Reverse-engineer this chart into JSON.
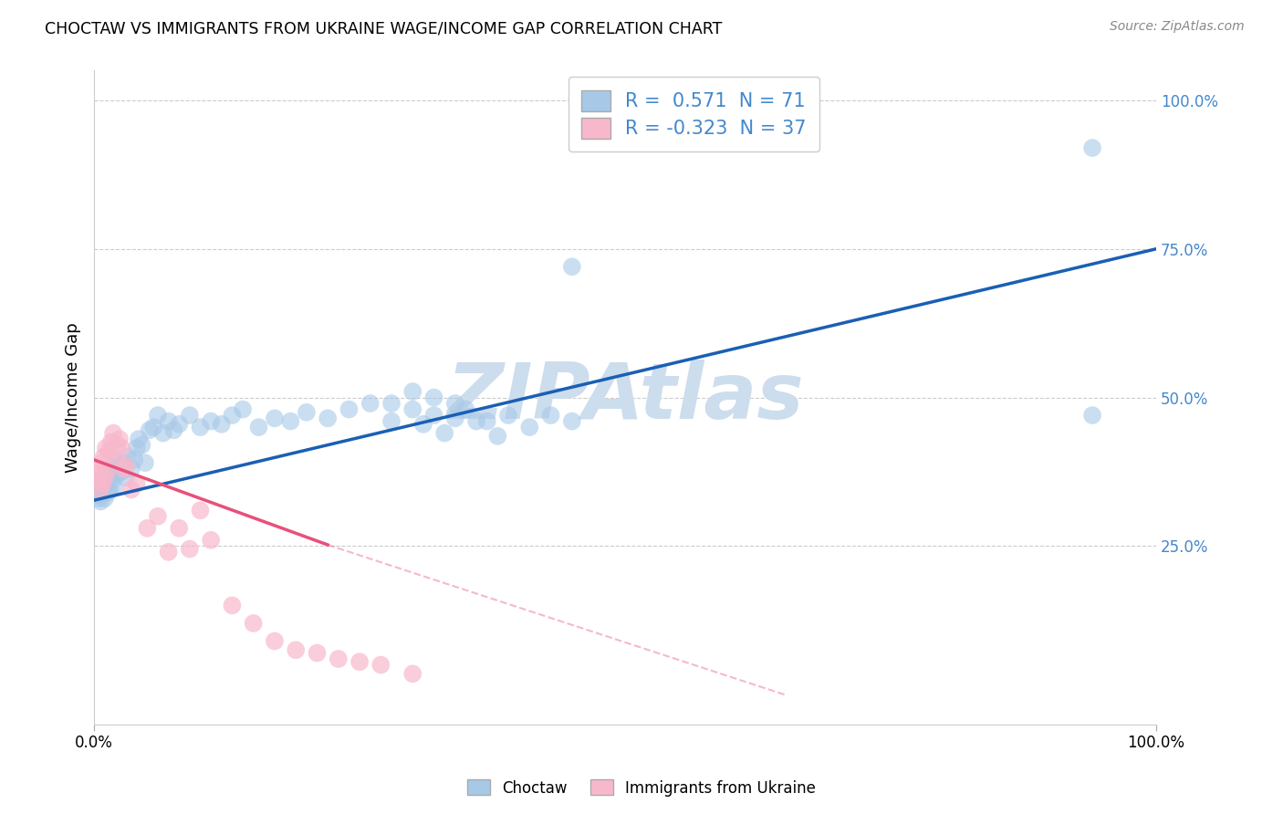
{
  "title": "CHOCTAW VS IMMIGRANTS FROM UKRAINE WAGE/INCOME GAP CORRELATION CHART",
  "source": "Source: ZipAtlas.com",
  "ylabel": "Wage/Income Gap",
  "right_ytick_vals": [
    1.0,
    0.75,
    0.5,
    0.25
  ],
  "right_ytick_labels": [
    "100.0%",
    "75.0%",
    "50.0%",
    "25.0%"
  ],
  "blue_color": "#a8c8e8",
  "pink_color": "#f8b8cc",
  "blue_line_color": "#1a5fb4",
  "pink_line_color": "#e8507a",
  "watermark": "ZIPAtlas",
  "watermark_color": "#ccdded",
  "legend_label1": "R =  0.571  N = 71",
  "legend_label2": "R = -0.323  N = 37",
  "legend_text_color": "#4488cc",
  "blue_scatter_x": [
    0.003,
    0.004,
    0.005,
    0.006,
    0.007,
    0.008,
    0.009,
    0.01,
    0.011,
    0.012,
    0.013,
    0.014,
    0.015,
    0.016,
    0.017,
    0.018,
    0.019,
    0.02,
    0.022,
    0.024,
    0.026,
    0.028,
    0.03,
    0.032,
    0.035,
    0.038,
    0.04,
    0.042,
    0.045,
    0.048,
    0.052,
    0.056,
    0.06,
    0.065,
    0.07,
    0.075,
    0.08,
    0.09,
    0.1,
    0.11,
    0.12,
    0.13,
    0.14,
    0.155,
    0.17,
    0.185,
    0.2,
    0.22,
    0.24,
    0.26,
    0.28,
    0.3,
    0.31,
    0.32,
    0.33,
    0.34,
    0.35,
    0.37,
    0.39,
    0.41,
    0.43,
    0.45,
    0.28,
    0.3,
    0.32,
    0.34,
    0.36,
    0.38,
    0.45,
    0.94,
    0.94
  ],
  "blue_scatter_y": [
    0.335,
    0.33,
    0.34,
    0.325,
    0.345,
    0.35,
    0.36,
    0.33,
    0.355,
    0.37,
    0.34,
    0.365,
    0.345,
    0.375,
    0.36,
    0.38,
    0.35,
    0.395,
    0.37,
    0.385,
    0.375,
    0.39,
    0.365,
    0.4,
    0.38,
    0.395,
    0.415,
    0.43,
    0.42,
    0.39,
    0.445,
    0.45,
    0.47,
    0.44,
    0.46,
    0.445,
    0.455,
    0.47,
    0.45,
    0.46,
    0.455,
    0.47,
    0.48,
    0.45,
    0.465,
    0.46,
    0.475,
    0.465,
    0.48,
    0.49,
    0.46,
    0.48,
    0.455,
    0.47,
    0.44,
    0.465,
    0.48,
    0.46,
    0.47,
    0.45,
    0.47,
    0.46,
    0.49,
    0.51,
    0.5,
    0.49,
    0.46,
    0.435,
    0.72,
    0.92,
    0.47
  ],
  "pink_scatter_x": [
    0.003,
    0.004,
    0.005,
    0.006,
    0.007,
    0.008,
    0.009,
    0.01,
    0.011,
    0.012,
    0.014,
    0.016,
    0.018,
    0.02,
    0.022,
    0.024,
    0.026,
    0.028,
    0.03,
    0.035,
    0.04,
    0.05,
    0.06,
    0.07,
    0.08,
    0.09,
    0.1,
    0.11,
    0.13,
    0.15,
    0.17,
    0.19,
    0.21,
    0.23,
    0.25,
    0.27,
    0.3
  ],
  "pink_scatter_y": [
    0.375,
    0.36,
    0.38,
    0.345,
    0.39,
    0.355,
    0.4,
    0.365,
    0.415,
    0.375,
    0.41,
    0.425,
    0.44,
    0.395,
    0.42,
    0.43,
    0.415,
    0.38,
    0.385,
    0.345,
    0.355,
    0.28,
    0.3,
    0.24,
    0.28,
    0.245,
    0.31,
    0.26,
    0.15,
    0.12,
    0.09,
    0.075,
    0.07,
    0.06,
    0.055,
    0.05,
    0.035
  ],
  "blue_trend_x0": 0.0,
  "blue_trend_y0": 0.327,
  "blue_trend_x1": 1.0,
  "blue_trend_y1": 0.75,
  "pink_trend_solid_x0": 0.0,
  "pink_trend_solid_y0": 0.395,
  "pink_trend_solid_x1": 0.22,
  "pink_trend_solid_y1": 0.252,
  "pink_trend_dashed_x0": 0.22,
  "pink_trend_dashed_y0": 0.252,
  "pink_trend_dashed_x1": 0.65,
  "pink_trend_dashed_y1": 0.0,
  "xlim": [
    0.0,
    1.0
  ],
  "ylim": [
    -0.05,
    1.05
  ],
  "grid_color": "#cccccc",
  "bg_color": "#ffffff",
  "axis_color": "#4488cc",
  "bottom_legend_labels": [
    "Choctaw",
    "Immigrants from Ukraine"
  ]
}
